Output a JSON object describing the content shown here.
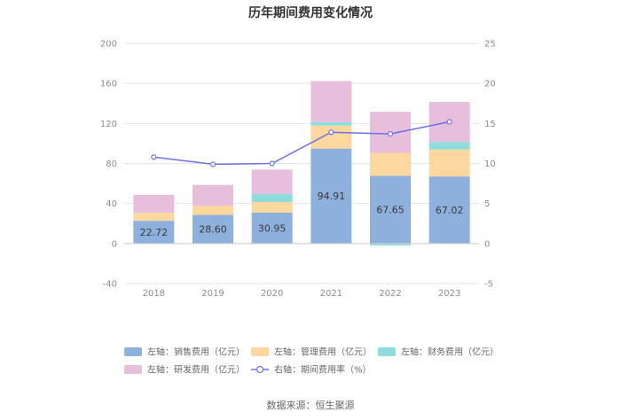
{
  "chart_data": {
    "type": "bar",
    "title": "历年期间费用变化情况",
    "categories": [
      "2018",
      "2019",
      "2020",
      "2021",
      "2022",
      "2023"
    ],
    "stacked": true,
    "left_axis": {
      "min": -40,
      "max": 200,
      "ticks": [
        "-40",
        "0",
        "40",
        "80",
        "120",
        "160",
        "200"
      ]
    },
    "right_axis": {
      "min": -5,
      "max": 25,
      "ticks": [
        "-5",
        "0",
        "5",
        "10",
        "15",
        "20",
        "25"
      ]
    },
    "series": [
      {
        "name": "左轴：销售费用（亿元）",
        "axis": "left",
        "kind": "bar",
        "color": "#8eb0dd",
        "values": [
          22.72,
          28.6,
          30.95,
          94.91,
          67.65,
          67.02
        ],
        "labels": [
          "22.72",
          "28.60",
          "30.95",
          "94.91",
          "67.65",
          "67.02"
        ]
      },
      {
        "name": "左轴：管理费用（亿元）",
        "axis": "left",
        "kind": "bar",
        "color": "#fcd79e",
        "values": [
          8,
          9,
          10.5,
          23,
          23,
          27
        ]
      },
      {
        "name": "左轴：财务费用（亿元）",
        "axis": "left",
        "kind": "bar",
        "color": "#8fdcdc",
        "values": [
          0,
          0,
          8,
          3.5,
          -2,
          7.5
        ]
      },
      {
        "name": "左轴：研发费用（亿元）",
        "axis": "left",
        "kind": "bar",
        "color": "#e8bedd",
        "values": [
          18,
          21,
          24.5,
          41,
          41,
          40
        ]
      },
      {
        "name": "右轴：期间费用率（%）",
        "axis": "right",
        "kind": "line",
        "color": "#6e70e8",
        "values": [
          10.8,
          9.9,
          10.0,
          13.9,
          13.7,
          15.2
        ]
      }
    ],
    "legend": [
      {
        "label": "左轴：销售费用（亿元）",
        "color": "#8eb0dd",
        "shape": "rect"
      },
      {
        "label": "左轴：管理费用（亿元）",
        "color": "#fcd79e",
        "shape": "rect"
      },
      {
        "label": "左轴：财务费用（亿元）",
        "color": "#8fdcdc",
        "shape": "rect"
      },
      {
        "label": "左轴：研发费用（亿元）",
        "color": "#e8bedd",
        "shape": "rect"
      },
      {
        "label": "右轴：期间费用率（%）",
        "color": "#6e70e8",
        "shape": "line"
      }
    ],
    "legend_position": "bottom",
    "grid": true
  },
  "source": "数据来源：恒生聚源"
}
